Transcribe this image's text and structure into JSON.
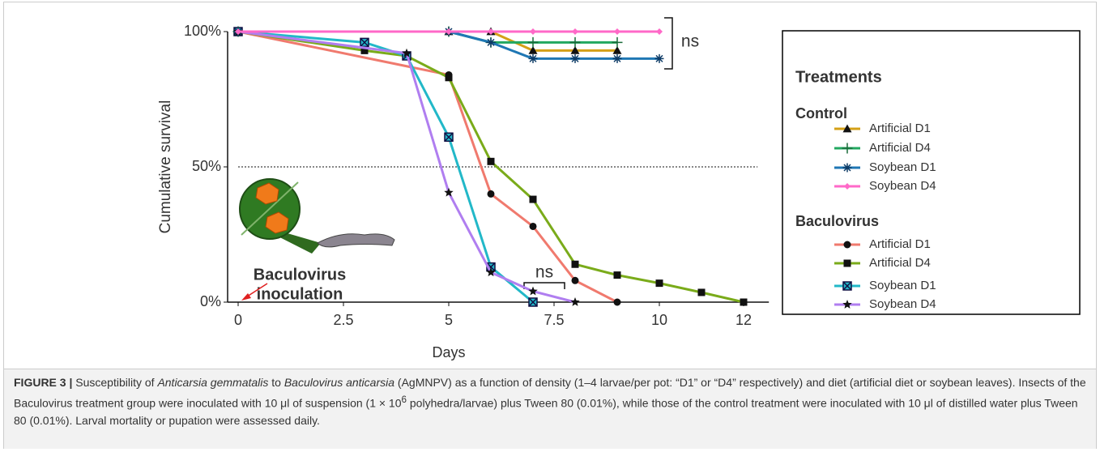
{
  "chart_data": {
    "type": "line",
    "xlabel": "Days",
    "ylabel": "Cumulative survival",
    "xlim": [
      -0.25,
      12.6
    ],
    "ylim": [
      0,
      100
    ],
    "xticks": [
      0,
      2.5,
      5,
      7.5,
      10,
      12
    ],
    "yticks": [
      {
        "value": 0,
        "label": "0%"
      },
      {
        "value": 50,
        "label": "50%"
      },
      {
        "value": 100,
        "label": "100%"
      }
    ],
    "reference_line": 50,
    "legend_title": "Treatments",
    "groups": [
      {
        "name": "Control",
        "series": [
          {
            "name": "Artificial D1",
            "color": "#d4a017",
            "marker": "triangle",
            "x": [
              0,
              5,
              6,
              7,
              8,
              9
            ],
            "values": [
              100,
              100,
              100,
              93,
              93,
              93
            ]
          },
          {
            "name": "Artificial D4",
            "color": "#22a860",
            "marker": "plus",
            "x": [
              0,
              5,
              6,
              7,
              8,
              9
            ],
            "values": [
              100,
              100,
              96,
              96,
              96,
              96
            ]
          },
          {
            "name": "Soybean D1",
            "color": "#1f77b4",
            "marker": "asterisk",
            "x": [
              0,
              5,
              6,
              7,
              8,
              9,
              10
            ],
            "values": [
              100,
              100,
              96,
              90,
              90,
              90,
              90
            ]
          },
          {
            "name": "Soybean D4",
            "color": "#ff69c8",
            "marker": "diamond",
            "x": [
              0,
              5,
              6,
              7,
              8,
              9,
              10
            ],
            "values": [
              100,
              100,
              100,
              100,
              100,
              100,
              100
            ]
          }
        ]
      },
      {
        "name": "Baculovirus",
        "series": [
          {
            "name": "Artificial D1",
            "color": "#f07a6e",
            "marker": "circle",
            "x": [
              0,
              5,
              6,
              7,
              8,
              9
            ],
            "values": [
              100,
              84,
              40,
              28,
              8,
              0
            ]
          },
          {
            "name": "Artificial D4",
            "color": "#7aab1a",
            "marker": "square",
            "x": [
              0,
              3,
              4,
              5,
              6,
              7,
              8,
              9,
              10,
              11,
              12
            ],
            "values": [
              100,
              93,
              91,
              83,
              52,
              38,
              14,
              10,
              7,
              3.6,
              0
            ]
          },
          {
            "name": "Soybean D1",
            "color": "#22b8c8",
            "marker": "boxx",
            "x": [
              0,
              3,
              4,
              5,
              6,
              7
            ],
            "values": [
              100,
              96,
              91,
              61,
              13,
              0
            ]
          },
          {
            "name": "Soybean D4",
            "color": "#b07ef0",
            "marker": "star",
            "x": [
              0,
              4,
              5,
              6,
              7,
              8
            ],
            "values": [
              100,
              92,
              40.5,
              11,
              4,
              0
            ]
          }
        ]
      }
    ],
    "annotations": [
      "ns",
      "ns",
      "Baculovirus",
      "inoculation"
    ]
  },
  "caption": {
    "label": "FIGURE 3 |",
    "parts": [
      " Susceptibility of ",
      "Anticarsia gemmatalis",
      " to ",
      "Baculovirus anticarsia",
      " (AgMNPV) as a function of density (1–4 larvae/per pot: “D1” or “D4” respectively) and diet (artificial diet or soybean leaves). Insects of the Baculovirus treatment group were inoculated with 10 μl of suspension (1 × 10",
      "6",
      " polyhedra/larvae) plus Tween 80 (0.01%), while those of the control treatment were inoculated with 10 μl of distilled water plus Tween 80 (0.01%). Larval mortality or pupation were assessed daily."
    ]
  }
}
